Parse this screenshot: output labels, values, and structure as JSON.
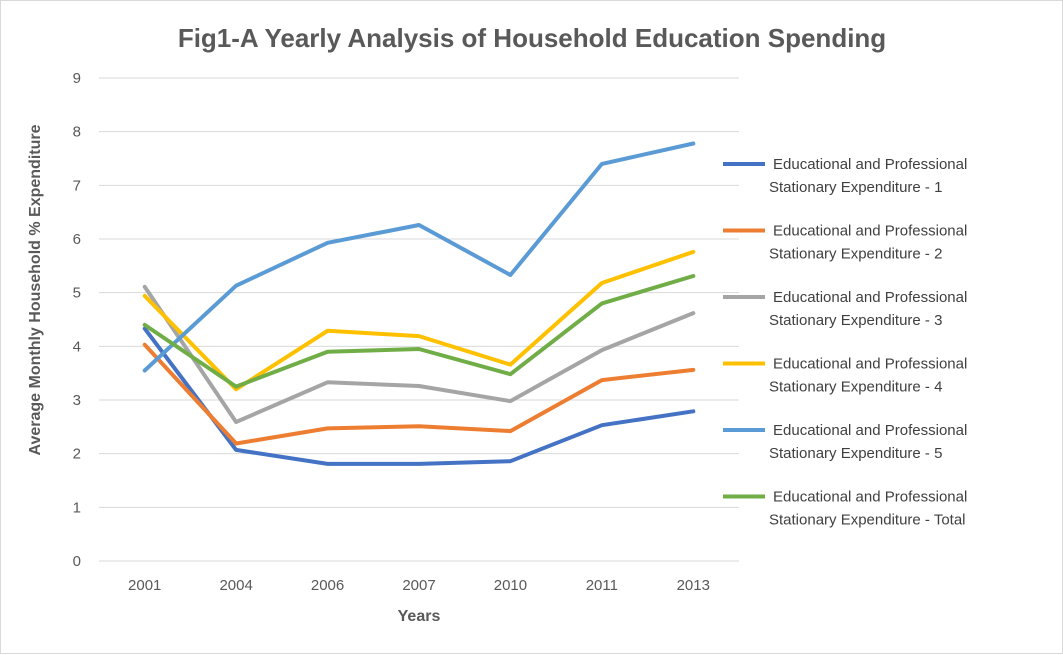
{
  "chart_data": {
    "type": "line",
    "title": "Fig1-A Yearly Analysis of Household Education Spending",
    "xlabel": "Years",
    "ylabel": "Average Monthly Household  % Expenditure",
    "categories": [
      "2001",
      "2004",
      "2006",
      "2007",
      "2010",
      "2011",
      "2013"
    ],
    "ylim": [
      0,
      9
    ],
    "yticks": [
      "0",
      "1",
      "2",
      "3",
      "4",
      "5",
      "6",
      "7",
      "8",
      "9"
    ],
    "grid": true,
    "legend_position": "right",
    "series": [
      {
        "name": "Educational and Professional Stationary Expenditure  - 1",
        "legend_lines": [
          "Educational and Professional",
          "Stationary Expenditure  - 1"
        ],
        "color": "#4472C4",
        "values": [
          4.33,
          2.07,
          1.81,
          1.81,
          1.86,
          2.53,
          2.79
        ]
      },
      {
        "name": "Educational and Professional Stationary Expenditure  - 2",
        "legend_lines": [
          "Educational and Professional",
          "Stationary Expenditure  - 2"
        ],
        "color": "#ED7D31",
        "values": [
          4.03,
          2.19,
          2.47,
          2.51,
          2.42,
          3.37,
          3.56
        ]
      },
      {
        "name": "Educational and Professional Stationary Expenditure  - 3",
        "legend_lines": [
          "Educational and Professional",
          "Stationary Expenditure  - 3"
        ],
        "color": "#A5A5A5",
        "values": [
          5.11,
          2.59,
          3.33,
          3.26,
          2.98,
          3.93,
          4.62
        ]
      },
      {
        "name": "Educational and Professional Stationary Expenditure  - 4",
        "legend_lines": [
          "Educational and Professional",
          "Stationary Expenditure  - 4"
        ],
        "color": "#FFC000",
        "values": [
          4.94,
          3.2,
          4.29,
          4.19,
          3.66,
          5.18,
          5.76
        ]
      },
      {
        "name": "Educational and Professional Stationary Expenditure  - 5",
        "legend_lines": [
          "Educational and Professional",
          "Stationary Expenditure  - 5"
        ],
        "color": "#5B9BD5",
        "values": [
          3.55,
          5.13,
          5.93,
          6.26,
          5.33,
          7.4,
          7.78
        ]
      },
      {
        "name": "Educational and Professional Stationary Expenditure  - Total",
        "legend_lines": [
          "Educational and Professional",
          "Stationary Expenditure  - Total"
        ],
        "color": "#70AD47",
        "values": [
          4.4,
          3.25,
          3.9,
          3.95,
          3.48,
          4.8,
          5.31
        ]
      }
    ]
  }
}
